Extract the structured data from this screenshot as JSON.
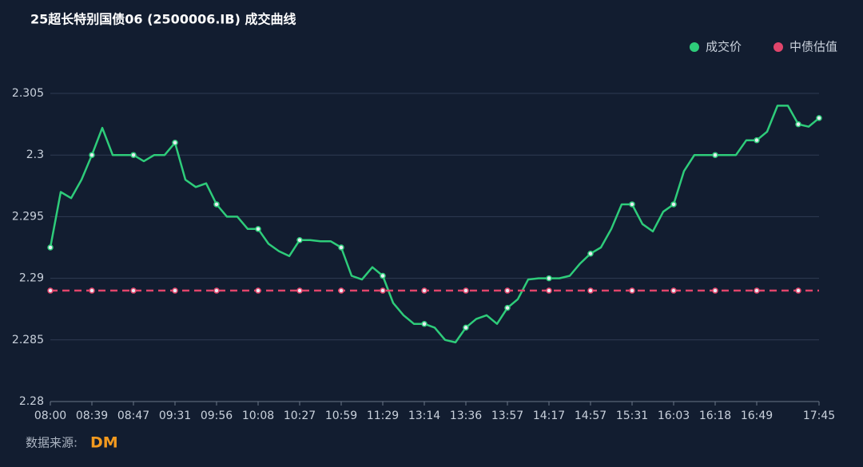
{
  "chart_data": {
    "type": "line",
    "title": "25超长特别国债06 (2500006.IB) 成交曲线",
    "source": "数据来源:",
    "source_logo": "DM",
    "categories": [
      "08:00",
      null,
      null,
      null,
      "08:39",
      null,
      null,
      null,
      "08:47",
      null,
      null,
      null,
      "09:31",
      null,
      null,
      null,
      "09:56",
      null,
      null,
      null,
      "10:08",
      null,
      null,
      null,
      "10:27",
      null,
      null,
      null,
      "10:59",
      null,
      null,
      null,
      "11:29",
      null,
      null,
      null,
      "13:14",
      null,
      null,
      null,
      "13:36",
      null,
      null,
      null,
      "13:57",
      null,
      null,
      null,
      "14:17",
      null,
      null,
      null,
      "14:57",
      null,
      null,
      null,
      "15:31",
      null,
      null,
      null,
      "16:03",
      null,
      null,
      null,
      "16:18",
      null,
      null,
      null,
      "16:49",
      null,
      null,
      null,
      null,
      null,
      "17:45"
    ],
    "series": [
      {
        "name": "成交价",
        "color": "#2ecc7a",
        "values": [
          2.2925,
          2.297,
          2.2965,
          2.298,
          2.3,
          2.3022,
          2.3,
          2.3,
          2.3,
          2.2995,
          2.3,
          2.3,
          2.301,
          2.298,
          2.2974,
          2.2977,
          2.296,
          2.295,
          2.295,
          2.294,
          2.294,
          2.2928,
          2.2922,
          2.2918,
          2.2931,
          2.2931,
          2.293,
          2.293,
          2.2925,
          2.2902,
          2.2899,
          2.2909,
          2.2902,
          2.288,
          2.287,
          2.2863,
          2.2863,
          2.286,
          2.285,
          2.2848,
          2.286,
          2.2867,
          2.287,
          2.2863,
          2.2876,
          2.2883,
          2.2899,
          2.29,
          2.29,
          2.29,
          2.2902,
          2.2912,
          2.292,
          2.2925,
          2.294,
          2.296,
          2.296,
          2.2944,
          2.2938,
          2.2954,
          2.296,
          2.2987,
          2.3,
          2.3,
          2.3,
          2.3,
          2.3,
          2.3012,
          2.3012,
          2.3019,
          2.304,
          2.304,
          2.3025,
          2.3023,
          2.303
        ]
      },
      {
        "name": "中债估值",
        "color": "#e0456b",
        "dashed": true,
        "values": [
          2.289,
          2.289,
          2.289,
          2.289,
          2.289,
          2.289,
          2.289,
          2.289,
          2.289,
          2.289,
          2.289,
          2.289,
          2.289,
          2.289,
          2.289,
          2.289,
          2.289,
          2.289,
          2.289,
          2.289,
          2.289,
          2.289,
          2.289,
          2.289,
          2.289,
          2.289,
          2.289,
          2.289,
          2.289,
          2.289,
          2.289,
          2.289,
          2.289,
          2.289,
          2.289,
          2.289,
          2.289,
          2.289,
          2.289,
          2.289,
          2.289,
          2.289,
          2.289,
          2.289,
          2.289,
          2.289,
          2.289,
          2.289,
          2.289,
          2.289,
          2.289,
          2.289,
          2.289,
          2.289,
          2.289,
          2.289,
          2.289,
          2.289,
          2.289,
          2.289,
          2.289,
          2.289,
          2.289,
          2.289,
          2.289,
          2.289,
          2.289,
          2.289,
          2.289,
          2.289,
          2.289,
          2.289,
          2.289,
          2.289,
          2.289
        ]
      }
    ],
    "ylim": [
      2.28,
      2.305
    ],
    "yticks": [
      2.28,
      2.285,
      2.29,
      2.295,
      2.3,
      2.305
    ],
    "grid": true,
    "legend": "top-right"
  }
}
